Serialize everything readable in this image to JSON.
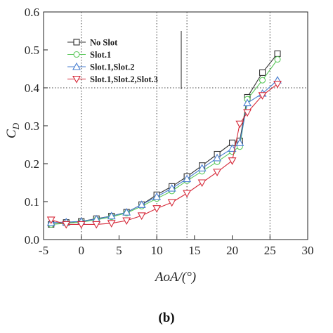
{
  "chart_data": {
    "type": "line",
    "xlabel": "AoA/(°)",
    "ylabel": "C_D",
    "caption": "(b)",
    "xlim": [
      -5,
      30
    ],
    "ylim": [
      0,
      0.6
    ],
    "xticks": [
      -5,
      0,
      5,
      10,
      15,
      20,
      25,
      30
    ],
    "yticks": [
      0.0,
      0.1,
      0.2,
      0.3,
      0.4,
      0.5,
      0.6
    ],
    "reference_lines": {
      "x": [
        0,
        10,
        14,
        25
      ],
      "y": [
        0.4
      ]
    },
    "legend_position": "top-left",
    "series": [
      {
        "name": "No Slot",
        "color": "#333333",
        "marker": "square",
        "x": [
          -4,
          -2,
          0,
          2,
          4,
          6,
          8,
          10,
          12,
          14,
          16,
          18,
          20,
          21,
          22,
          24,
          26
        ],
        "y": [
          0.04,
          0.045,
          0.048,
          0.055,
          0.062,
          0.072,
          0.092,
          0.118,
          0.14,
          0.166,
          0.195,
          0.225,
          0.255,
          0.26,
          0.375,
          0.44,
          0.49
        ]
      },
      {
        "name": "Slot.1",
        "color": "#5ac85a",
        "marker": "circle",
        "x": [
          -4,
          -2,
          0,
          2,
          4,
          6,
          8,
          10,
          12,
          14,
          16,
          18,
          20,
          21,
          22,
          24,
          26
        ],
        "y": [
          0.04,
          0.043,
          0.046,
          0.052,
          0.06,
          0.07,
          0.088,
          0.108,
          0.128,
          0.155,
          0.18,
          0.205,
          0.232,
          0.245,
          0.37,
          0.42,
          0.475
        ]
      },
      {
        "name": "Slot.1,Slot.2",
        "color": "#4a7fd0",
        "marker": "triangle-up",
        "x": [
          -4,
          -2,
          0,
          2,
          4,
          6,
          8,
          10,
          12,
          14,
          16,
          18,
          20,
          21,
          22,
          24,
          26
        ],
        "y": [
          0.045,
          0.046,
          0.048,
          0.054,
          0.062,
          0.072,
          0.092,
          0.113,
          0.135,
          0.16,
          0.188,
          0.215,
          0.24,
          0.255,
          0.36,
          0.385,
          0.42
        ]
      },
      {
        "name": "Slot.1,Slot.2,Slot.3",
        "color": "#d62a3a",
        "marker": "triangle-down",
        "x": [
          -4,
          -2,
          0,
          2,
          4,
          6,
          8,
          10,
          12,
          14,
          16,
          18,
          20,
          21,
          22,
          24,
          26
        ],
        "y": [
          0.052,
          0.04,
          0.04,
          0.04,
          0.043,
          0.05,
          0.063,
          0.082,
          0.098,
          0.122,
          0.15,
          0.178,
          0.208,
          0.305,
          0.335,
          0.38,
          0.41
        ]
      }
    ]
  }
}
